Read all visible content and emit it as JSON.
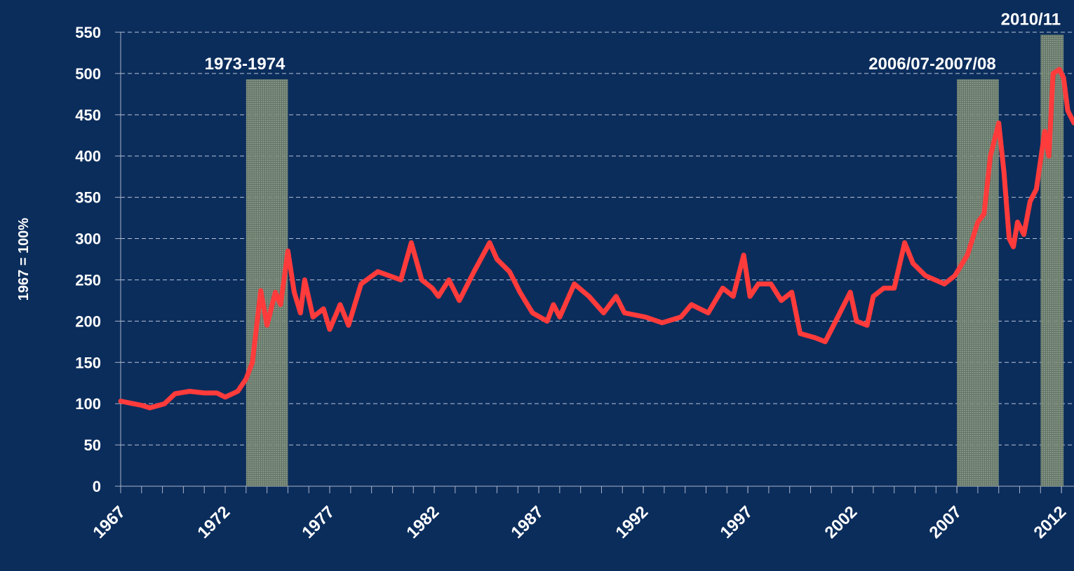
{
  "chart_data": {
    "type": "line",
    "y_label": "1967 = 100%",
    "xlim": [
      1967,
      2012.6
    ],
    "ylim": [
      0,
      550
    ],
    "yticks": [
      0,
      50,
      100,
      150,
      200,
      250,
      300,
      350,
      400,
      450,
      500,
      550
    ],
    "xticks": [
      1967,
      1972,
      1977,
      1982,
      1987,
      1992,
      1997,
      2002,
      2007,
      2012
    ],
    "grid": true,
    "regions": [
      {
        "label": "1973-1974",
        "x": [
          1973,
          1975
        ],
        "top": 493
      },
      {
        "label": "2006/07-2007/08",
        "x": [
          2007,
          2009
        ],
        "top": 493
      },
      {
        "label": "2010/11",
        "x": [
          2011,
          2012.1
        ],
        "top": 547
      }
    ],
    "series": [
      {
        "color": "#ff3b3b",
        "x": [
          1967,
          1967.6,
          1968,
          1968.4,
          1969.1,
          1969.6,
          1970.3,
          1971,
          1971.6,
          1972,
          1972.6,
          1973,
          1973.3,
          1973.7,
          1974,
          1974.4,
          1974.65,
          1975,
          1975.3,
          1975.6,
          1975.8,
          1976.2,
          1976.7,
          1977,
          1977.5,
          1977.9,
          1978.5,
          1979.3,
          1980.4,
          1980.9,
          1981.4,
          1981.9,
          1982.2,
          1982.7,
          1983.2,
          1983.9,
          1984.65,
          1985,
          1985.6,
          1986.1,
          1986.7,
          1987.4,
          1987.7,
          1988,
          1988.7,
          1989.4,
          1990.1,
          1990.7,
          1991.1,
          1992.1,
          1992.9,
          1993.8,
          1994.3,
          1995.1,
          1995.8,
          1996.3,
          1996.8,
          1997.1,
          1997.5,
          1998.1,
          1998.6,
          1999.1,
          1999.5,
          2000.2,
          2000.7,
          2001.2,
          2001.9,
          2002.2,
          2002.7,
          2003,
          2003.5,
          2004,
          2004.5,
          2004.9,
          2005.5,
          2006.4,
          2006.9,
          2007.5,
          2008,
          2008.3,
          2008.6,
          2009,
          2009.25,
          2009.5,
          2009.7,
          2009.9,
          2010.2,
          2010.5,
          2010.8,
          2011.2,
          2011.4,
          2011.6,
          2011.9,
          2012.1,
          2012.3,
          2012.6
        ],
        "values": [
          103,
          100,
          98,
          95,
          100,
          112,
          115,
          113,
          113,
          108,
          115,
          130,
          150,
          237,
          195,
          235,
          220,
          285,
          235,
          210,
          250,
          205,
          215,
          190,
          220,
          195,
          245,
          260,
          250,
          295,
          250,
          240,
          230,
          250,
          225,
          260,
          295,
          275,
          260,
          235,
          210,
          200,
          220,
          205,
          245,
          230,
          210,
          230,
          210,
          205,
          198,
          205,
          220,
          210,
          240,
          230,
          280,
          230,
          245,
          245,
          225,
          235,
          185,
          180,
          175,
          200,
          235,
          200,
          195,
          230,
          240,
          240,
          295,
          270,
          255,
          245,
          255,
          280,
          320,
          330,
          400,
          440,
          380,
          300,
          290,
          320,
          305,
          345,
          360,
          430,
          400,
          500,
          505,
          495,
          455,
          440
        ]
      }
    ]
  }
}
